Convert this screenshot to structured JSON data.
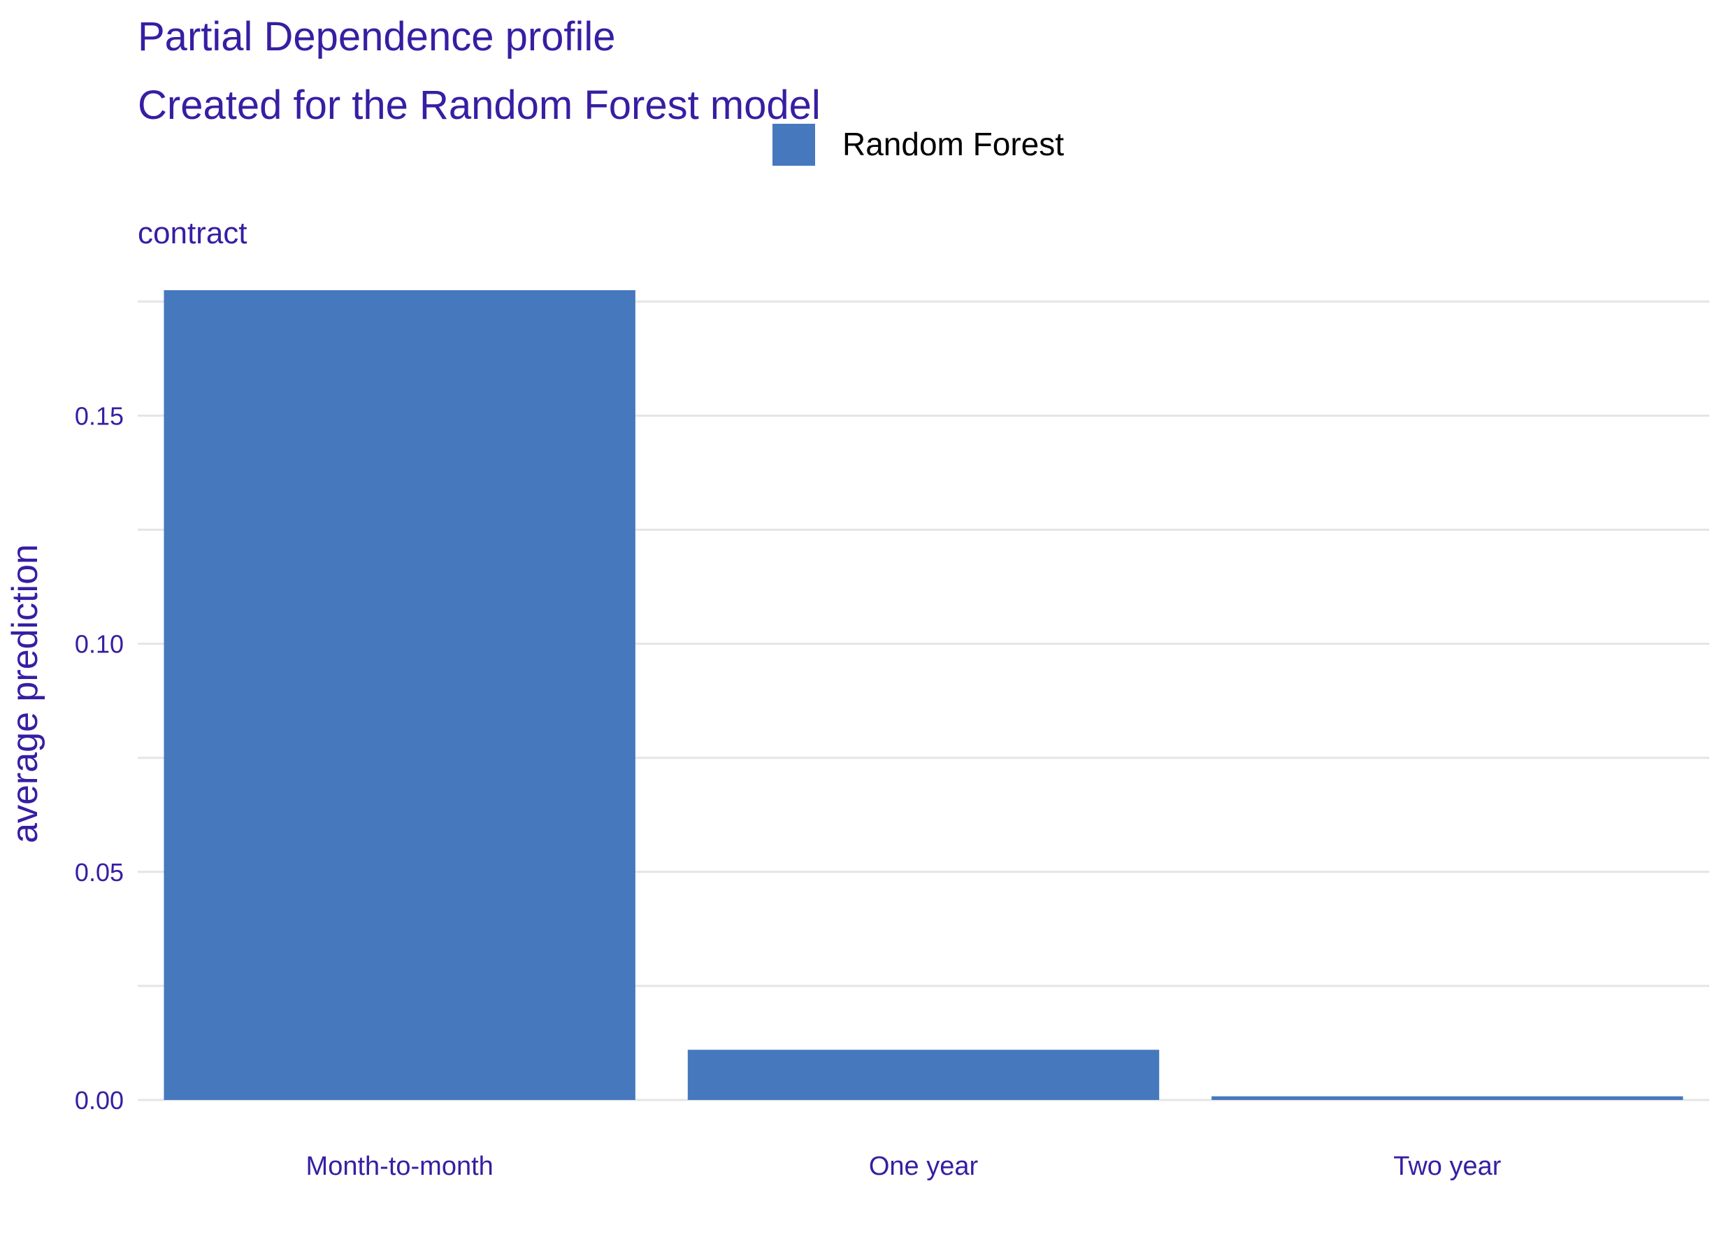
{
  "chart_data": {
    "type": "bar",
    "title": "Partial Dependence profile",
    "subtitle": "Created for the Random Forest model",
    "facet_label": "contract",
    "xlabel": "",
    "ylabel": "average prediction",
    "categories": [
      "Month-to-month",
      "One year",
      "Two year"
    ],
    "series": [
      {
        "name": "Random Forest",
        "values": [
          0.1775,
          0.011,
          0.0008
        ]
      }
    ],
    "ylim": [
      0,
      0.1775
    ],
    "y_ticks": [
      0.0,
      0.05,
      0.1,
      0.15
    ],
    "y_tick_labels": [
      "0.00",
      "0.05",
      "0.10",
      "0.15"
    ],
    "y_minor_ticks": [
      0.025,
      0.075,
      0.125,
      0.175
    ],
    "grid": true,
    "legend_position": "top",
    "colors": {
      "bar": "#4678BE",
      "title": "#371EA3",
      "grid": "#E5E5E5",
      "legend_text": "#000000"
    }
  }
}
